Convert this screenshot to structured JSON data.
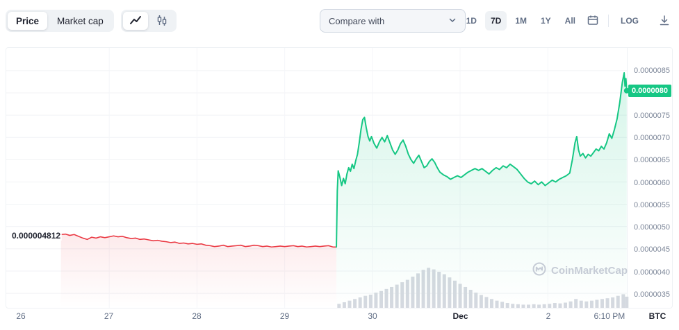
{
  "toolbar": {
    "price_label": "Price",
    "market_cap_label": "Market cap",
    "compare_with": "Compare with",
    "ranges": [
      "1D",
      "7D",
      "1M",
      "1Y",
      "All"
    ],
    "selected_range": "7D",
    "log_label": "LOG"
  },
  "watermark": "CoinMarketCap",
  "axis_unit": "BTC",
  "colors": {
    "up": "#16c784",
    "down": "#ea3943",
    "volume": "#d5d9e0",
    "grid": "#f0f2f5"
  },
  "chart_data": {
    "type": "line",
    "title": "7-day price chart (price in BTC)",
    "price_unit": "BTC",
    "value_scale": "price values below are BTC x 1e-6 (e.g. 4.82 = 0.00000482 BTC)",
    "x_unit": "day index: 26-30 = Nov 26-30, 31 = Dec 1, 32 = Dec 2",
    "ylim": [
      3.3,
      8.7
    ],
    "grid": true,
    "y_ticks": [
      {
        "label": "0.0000085",
        "value": 8.5
      },
      {
        "label": "0.0000080",
        "value": 8.0
      },
      {
        "label": "0.0000075",
        "value": 7.5
      },
      {
        "label": "0.0000070",
        "value": 7.0
      },
      {
        "label": "0.0000065",
        "value": 6.5
      },
      {
        "label": "0.0000060",
        "value": 6.0
      },
      {
        "label": "0.0000055",
        "value": 5.5
      },
      {
        "label": "0.0000050",
        "value": 5.0
      },
      {
        "label": "0.0000045",
        "value": 4.5
      },
      {
        "label": "0.0000040",
        "value": 4.0
      },
      {
        "label": "0.0000035",
        "value": 3.5
      }
    ],
    "x_ticks": [
      {
        "label": "26",
        "day": 26
      },
      {
        "label": "27",
        "day": 27
      },
      {
        "label": "28",
        "day": 28
      },
      {
        "label": "29",
        "day": 29
      },
      {
        "label": "30",
        "day": 30
      },
      {
        "label": "Dec",
        "day": 31,
        "bold": true
      },
      {
        "label": "2",
        "day": 32
      },
      {
        "label": "6:10 PM",
        "day": 32.695
      }
    ],
    "open_annotation": {
      "label": "0.000004812",
      "value": 4.812
    },
    "last_price": {
      "label": "0.0000080",
      "value": 8.05
    },
    "series": [
      {
        "name": "price-down-segment",
        "color": "#ea3943",
        "points": [
          [
            26.45,
            4.82
          ],
          [
            26.5,
            4.83
          ],
          [
            26.55,
            4.8
          ],
          [
            26.6,
            4.82
          ],
          [
            26.65,
            4.78
          ],
          [
            26.7,
            4.74
          ],
          [
            26.75,
            4.71
          ],
          [
            26.8,
            4.76
          ],
          [
            26.85,
            4.74
          ],
          [
            26.9,
            4.77
          ],
          [
            26.95,
            4.75
          ],
          [
            27.0,
            4.77
          ],
          [
            27.05,
            4.79
          ],
          [
            27.1,
            4.77
          ],
          [
            27.15,
            4.78
          ],
          [
            27.2,
            4.75
          ],
          [
            27.25,
            4.73
          ],
          [
            27.3,
            4.74
          ],
          [
            27.35,
            4.71
          ],
          [
            27.4,
            4.72
          ],
          [
            27.45,
            4.7
          ],
          [
            27.5,
            4.68
          ],
          [
            27.55,
            4.69
          ],
          [
            27.6,
            4.67
          ],
          [
            27.65,
            4.66
          ],
          [
            27.7,
            4.64
          ],
          [
            27.75,
            4.65
          ],
          [
            27.8,
            4.62
          ],
          [
            27.85,
            4.63
          ],
          [
            27.9,
            4.61
          ],
          [
            27.95,
            4.62
          ],
          [
            28.0,
            4.6
          ],
          [
            28.05,
            4.61
          ],
          [
            28.1,
            4.58
          ],
          [
            28.15,
            4.57
          ],
          [
            28.2,
            4.55
          ],
          [
            28.25,
            4.56
          ],
          [
            28.3,
            4.58
          ],
          [
            28.35,
            4.55
          ],
          [
            28.4,
            4.56
          ],
          [
            28.45,
            4.57
          ],
          [
            28.5,
            4.58
          ],
          [
            28.55,
            4.55
          ],
          [
            28.6,
            4.56
          ],
          [
            28.65,
            4.58
          ],
          [
            28.7,
            4.57
          ],
          [
            28.75,
            4.55
          ],
          [
            28.8,
            4.56
          ],
          [
            28.85,
            4.54
          ],
          [
            28.9,
            4.55
          ],
          [
            28.95,
            4.56
          ],
          [
            29.0,
            4.55
          ],
          [
            29.05,
            4.56
          ],
          [
            29.1,
            4.57
          ],
          [
            29.15,
            4.55
          ],
          [
            29.2,
            4.56
          ],
          [
            29.25,
            4.54
          ],
          [
            29.3,
            4.55
          ],
          [
            29.35,
            4.56
          ],
          [
            29.4,
            4.55
          ],
          [
            29.45,
            4.56
          ],
          [
            29.5,
            4.57
          ],
          [
            29.55,
            4.54
          ],
          [
            29.59,
            4.54
          ]
        ]
      },
      {
        "name": "price-up-segment",
        "color": "#16c784",
        "points": [
          [
            29.59,
            4.54
          ],
          [
            29.6,
            5.8
          ],
          [
            29.61,
            6.25
          ],
          [
            29.63,
            6.1
          ],
          [
            29.65,
            5.92
          ],
          [
            29.67,
            6.08
          ],
          [
            29.69,
            5.96
          ],
          [
            29.71,
            6.18
          ],
          [
            29.73,
            6.32
          ],
          [
            29.75,
            6.24
          ],
          [
            29.77,
            6.4
          ],
          [
            29.79,
            6.3
          ],
          [
            29.81,
            6.48
          ],
          [
            29.83,
            6.62
          ],
          [
            29.85,
            6.88
          ],
          [
            29.87,
            7.18
          ],
          [
            29.89,
            7.4
          ],
          [
            29.91,
            7.45
          ],
          [
            29.93,
            7.22
          ],
          [
            29.95,
            7.02
          ],
          [
            29.97,
            6.92
          ],
          [
            29.99,
            7.02
          ],
          [
            30.02,
            6.86
          ],
          [
            30.05,
            6.76
          ],
          [
            30.08,
            6.9
          ],
          [
            30.11,
            7.0
          ],
          [
            30.14,
            6.9
          ],
          [
            30.17,
            7.04
          ],
          [
            30.2,
            6.88
          ],
          [
            30.23,
            6.72
          ],
          [
            30.26,
            6.62
          ],
          [
            30.29,
            6.72
          ],
          [
            30.32,
            6.86
          ],
          [
            30.35,
            6.94
          ],
          [
            30.38,
            6.8
          ],
          [
            30.41,
            6.62
          ],
          [
            30.44,
            6.5
          ],
          [
            30.47,
            6.42
          ],
          [
            30.5,
            6.52
          ],
          [
            30.53,
            6.6
          ],
          [
            30.56,
            6.46
          ],
          [
            30.59,
            6.32
          ],
          [
            30.62,
            6.36
          ],
          [
            30.65,
            6.46
          ],
          [
            30.68,
            6.52
          ],
          [
            30.71,
            6.44
          ],
          [
            30.74,
            6.32
          ],
          [
            30.77,
            6.22
          ],
          [
            30.81,
            6.16
          ],
          [
            30.85,
            6.12
          ],
          [
            30.89,
            6.06
          ],
          [
            30.93,
            6.1
          ],
          [
            30.97,
            6.14
          ],
          [
            31.01,
            6.1
          ],
          [
            31.05,
            6.16
          ],
          [
            31.09,
            6.22
          ],
          [
            31.13,
            6.26
          ],
          [
            31.17,
            6.3
          ],
          [
            31.21,
            6.26
          ],
          [
            31.25,
            6.3
          ],
          [
            31.29,
            6.24
          ],
          [
            31.33,
            6.18
          ],
          [
            31.37,
            6.26
          ],
          [
            31.41,
            6.32
          ],
          [
            31.45,
            6.28
          ],
          [
            31.49,
            6.36
          ],
          [
            31.53,
            6.32
          ],
          [
            31.57,
            6.4
          ],
          [
            31.61,
            6.34
          ],
          [
            31.65,
            6.28
          ],
          [
            31.69,
            6.18
          ],
          [
            31.73,
            6.08
          ],
          [
            31.77,
            6.0
          ],
          [
            31.81,
            5.96
          ],
          [
            31.85,
            6.02
          ],
          [
            31.89,
            5.94
          ],
          [
            31.93,
            6.0
          ],
          [
            31.97,
            5.92
          ],
          [
            32.01,
            5.98
          ],
          [
            32.05,
            6.04
          ],
          [
            32.09,
            6.0
          ],
          [
            32.13,
            6.06
          ],
          [
            32.17,
            6.1
          ],
          [
            32.21,
            6.14
          ],
          [
            32.25,
            6.2
          ],
          [
            32.28,
            6.5
          ],
          [
            32.31,
            6.88
          ],
          [
            32.33,
            7.02
          ],
          [
            32.35,
            6.72
          ],
          [
            32.37,
            6.58
          ],
          [
            32.4,
            6.64
          ],
          [
            32.43,
            6.54
          ],
          [
            32.46,
            6.62
          ],
          [
            32.49,
            6.58
          ],
          [
            32.52,
            6.66
          ],
          [
            32.55,
            6.74
          ],
          [
            32.58,
            6.7
          ],
          [
            32.61,
            6.8
          ],
          [
            32.64,
            6.74
          ],
          [
            32.67,
            6.88
          ],
          [
            32.7,
            7.08
          ],
          [
            32.73,
            6.98
          ],
          [
            32.76,
            7.18
          ],
          [
            32.79,
            7.42
          ],
          [
            32.82,
            7.78
          ],
          [
            32.85,
            8.24
          ],
          [
            32.87,
            8.45
          ],
          [
            32.88,
            8.15
          ],
          [
            32.89,
            8.32
          ],
          [
            32.9,
            8.05
          ]
        ]
      }
    ],
    "volume_bars": {
      "color": "#d5d9e0",
      "scale": "relative volume 0-1 (no axis labels shown)",
      "points": [
        [
          29.62,
          0.1
        ],
        [
          29.68,
          0.14
        ],
        [
          29.74,
          0.18
        ],
        [
          29.8,
          0.22
        ],
        [
          29.86,
          0.26
        ],
        [
          29.92,
          0.3
        ],
        [
          29.98,
          0.33
        ],
        [
          30.04,
          0.38
        ],
        [
          30.1,
          0.42
        ],
        [
          30.16,
          0.47
        ],
        [
          30.22,
          0.52
        ],
        [
          30.28,
          0.58
        ],
        [
          30.34,
          0.64
        ],
        [
          30.4,
          0.7
        ],
        [
          30.46,
          0.78
        ],
        [
          30.52,
          0.86
        ],
        [
          30.58,
          0.95
        ],
        [
          30.64,
          1.0
        ],
        [
          30.7,
          0.96
        ],
        [
          30.76,
          0.9
        ],
        [
          30.82,
          0.84
        ],
        [
          30.88,
          0.76
        ],
        [
          30.94,
          0.68
        ],
        [
          31.0,
          0.6
        ],
        [
          31.06,
          0.52
        ],
        [
          31.12,
          0.45
        ],
        [
          31.18,
          0.38
        ],
        [
          31.24,
          0.32
        ],
        [
          31.3,
          0.27
        ],
        [
          31.36,
          0.22
        ],
        [
          31.42,
          0.18
        ],
        [
          31.48,
          0.15
        ],
        [
          31.54,
          0.12
        ],
        [
          31.6,
          0.1
        ],
        [
          31.66,
          0.09
        ],
        [
          31.72,
          0.08
        ],
        [
          31.78,
          0.08
        ],
        [
          31.84,
          0.09
        ],
        [
          31.9,
          0.08
        ],
        [
          31.96,
          0.09
        ],
        [
          32.02,
          0.1
        ],
        [
          32.08,
          0.12
        ],
        [
          32.14,
          0.11
        ],
        [
          32.2,
          0.13
        ],
        [
          32.26,
          0.16
        ],
        [
          32.32,
          0.22
        ],
        [
          32.38,
          0.18
        ],
        [
          32.44,
          0.16
        ],
        [
          32.5,
          0.18
        ],
        [
          32.56,
          0.2
        ],
        [
          32.62,
          0.22
        ],
        [
          32.68,
          0.24
        ],
        [
          32.74,
          0.26
        ],
        [
          32.8,
          0.3
        ],
        [
          32.86,
          0.34
        ],
        [
          32.9,
          0.28
        ]
      ]
    }
  }
}
